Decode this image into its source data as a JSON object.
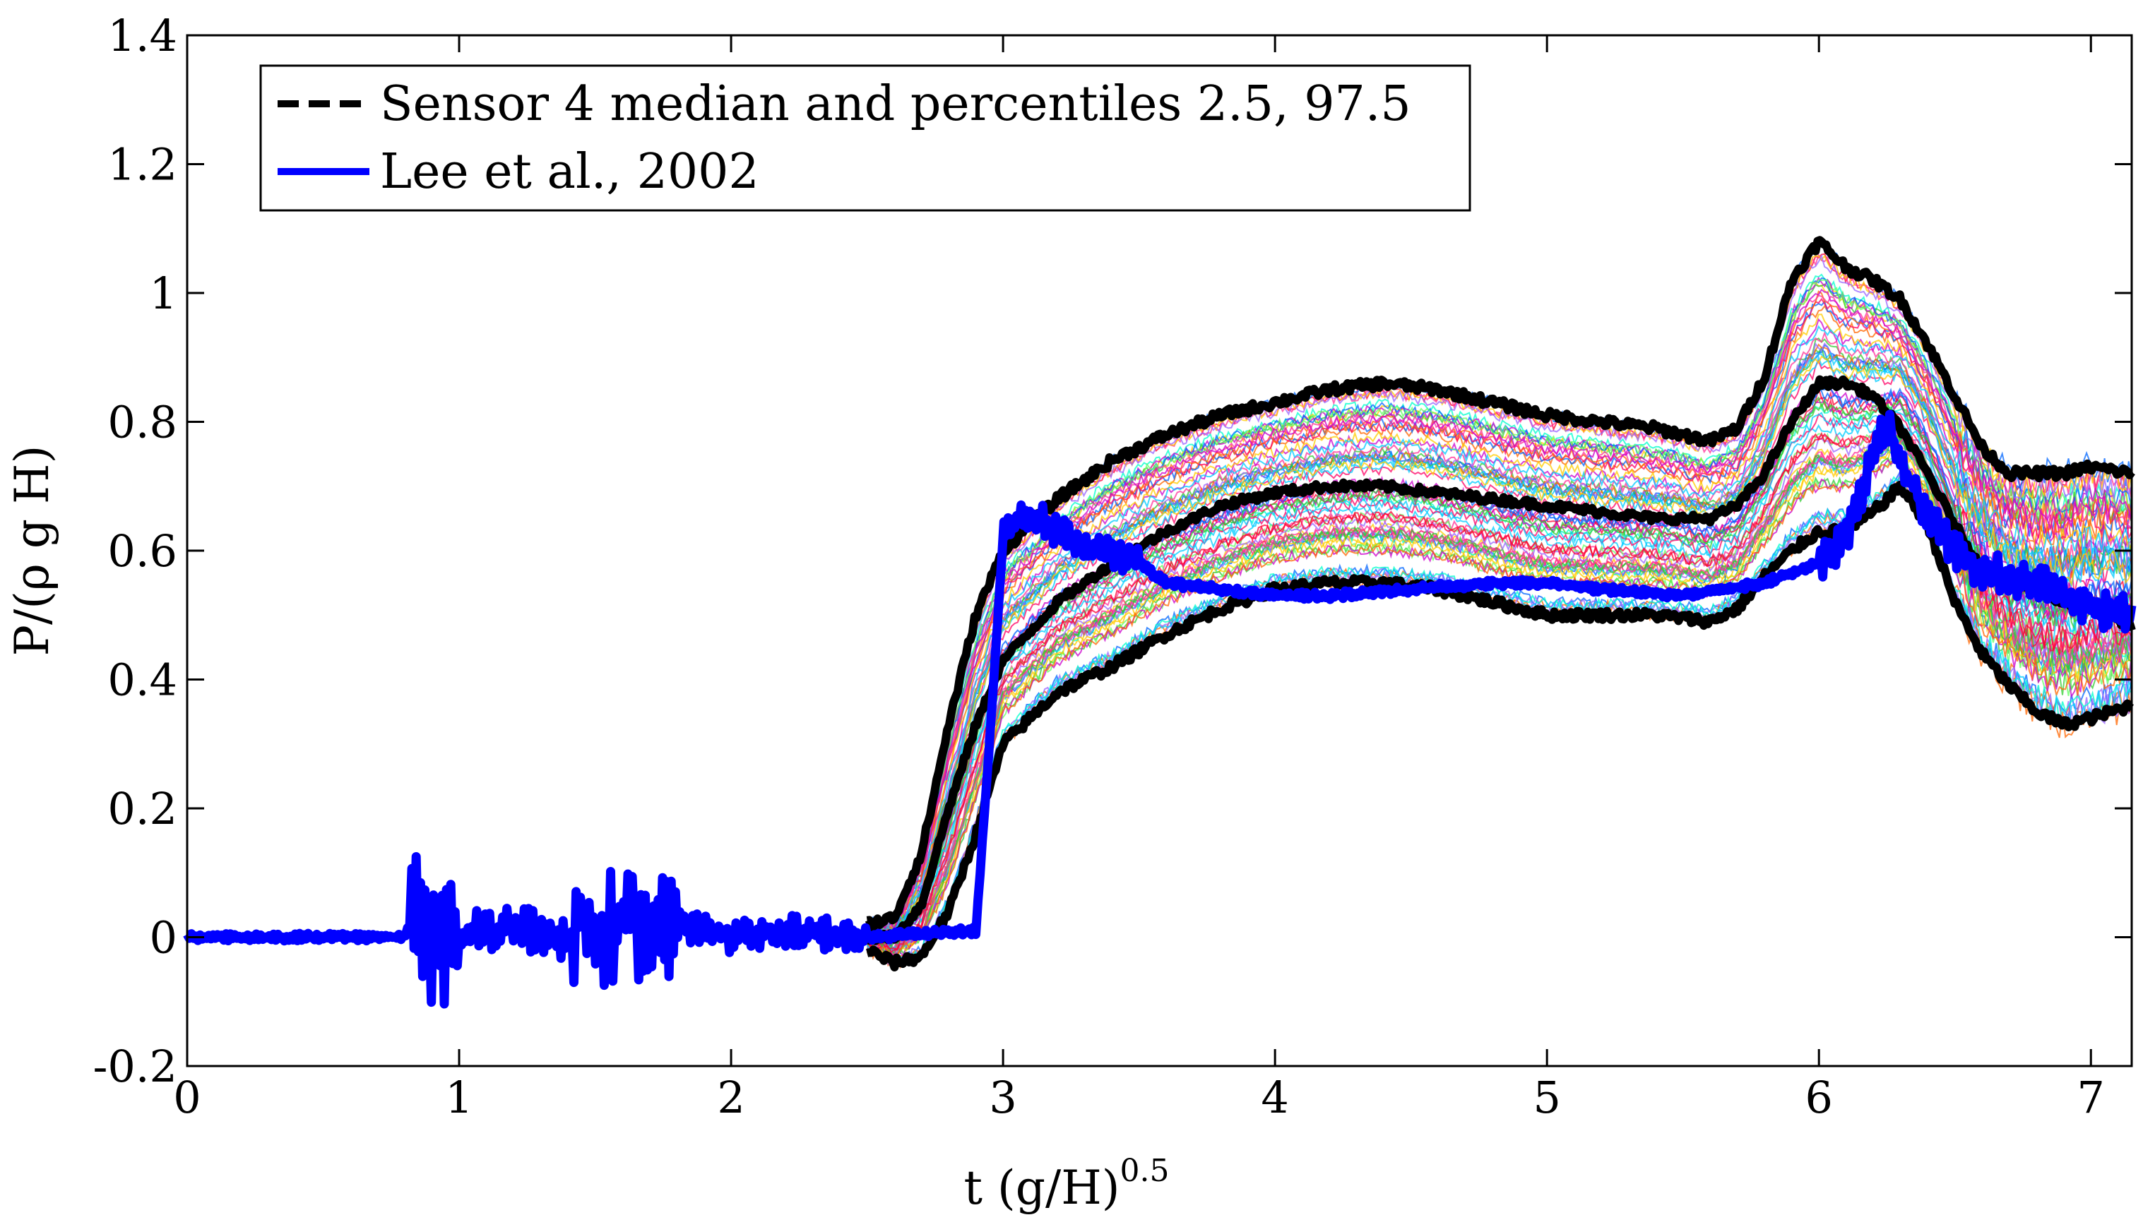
{
  "chart_data": {
    "type": "line",
    "title": "",
    "xlabel": "t (g/H)",
    "xlabel_superscript": "0.5",
    "ylabel": "P/(ρ g H)",
    "xlim": [
      0,
      7.15
    ],
    "ylim": [
      -0.2,
      1.4
    ],
    "xticks": [
      0,
      1,
      2,
      3,
      4,
      5,
      6,
      7
    ],
    "yticks": [
      -0.2,
      0,
      0.2,
      0.4,
      0.6,
      0.8,
      1,
      1.2,
      1.4
    ],
    "xtick_labels": [
      "0",
      "1",
      "2",
      "3",
      "4",
      "5",
      "6",
      "7"
    ],
    "ytick_labels": [
      "-0.2",
      "0",
      "0.2",
      "0.4",
      "0.6",
      "0.8",
      "1",
      "1.2",
      "1.4"
    ],
    "grid": false,
    "legend_position": "top-left",
    "legend": [
      {
        "label": "Sensor 4 median and percentiles 2.5, 97.5",
        "color": "#000000",
        "style": "dashed"
      },
      {
        "label": "Lee et al., 2002",
        "color": "#0000ff",
        "style": "solid"
      }
    ],
    "series": [
      {
        "name": "Sensor 4 median",
        "color": "#000000",
        "x": [
          0,
          2.5,
          2.6,
          2.7,
          2.8,
          2.9,
          3.0,
          3.2,
          3.4,
          3.6,
          3.8,
          4.0,
          4.2,
          4.4,
          4.6,
          4.8,
          5.0,
          5.2,
          5.4,
          5.6,
          5.7,
          5.8,
          5.9,
          6.0,
          6.1,
          6.2,
          6.3,
          6.4,
          6.5,
          6.6,
          6.7,
          6.8,
          6.9,
          7.0,
          7.15
        ],
        "values": [
          0,
          0,
          0,
          0.05,
          0.2,
          0.33,
          0.43,
          0.52,
          0.58,
          0.63,
          0.67,
          0.69,
          0.7,
          0.7,
          0.69,
          0.68,
          0.67,
          0.66,
          0.65,
          0.65,
          0.67,
          0.72,
          0.8,
          0.86,
          0.86,
          0.84,
          0.79,
          0.72,
          0.64,
          0.57,
          0.55,
          0.54,
          0.52,
          0.51,
          0.48
        ]
      },
      {
        "name": "Sensor 4 percentile 97.5",
        "color": "#000000",
        "x": [
          0,
          2.5,
          2.6,
          2.7,
          2.8,
          2.9,
          3.0,
          3.2,
          3.4,
          3.6,
          3.8,
          4.0,
          4.2,
          4.4,
          4.6,
          4.8,
          5.0,
          5.2,
          5.4,
          5.6,
          5.7,
          5.8,
          5.9,
          6.0,
          6.1,
          6.2,
          6.3,
          6.4,
          6.5,
          6.6,
          6.7,
          6.8,
          6.9,
          7.0,
          7.15
        ],
        "values": [
          0.02,
          0.02,
          0.03,
          0.13,
          0.33,
          0.5,
          0.6,
          0.68,
          0.74,
          0.78,
          0.81,
          0.83,
          0.85,
          0.86,
          0.85,
          0.83,
          0.81,
          0.8,
          0.79,
          0.77,
          0.79,
          0.87,
          1.02,
          1.08,
          1.04,
          1.02,
          0.99,
          0.92,
          0.84,
          0.76,
          0.72,
          0.72,
          0.72,
          0.73,
          0.72
        ]
      },
      {
        "name": "Sensor 4 percentile 2.5",
        "color": "#000000",
        "x": [
          0,
          2.5,
          2.6,
          2.7,
          2.8,
          2.9,
          3.0,
          3.2,
          3.4,
          3.6,
          3.8,
          4.0,
          4.2,
          4.4,
          4.6,
          4.8,
          5.0,
          5.2,
          5.4,
          5.6,
          5.7,
          5.8,
          5.9,
          6.0,
          6.1,
          6.2,
          6.3,
          6.4,
          6.5,
          6.6,
          6.7,
          6.8,
          6.9,
          7.0,
          7.15
        ],
        "values": [
          -0.02,
          -0.02,
          -0.04,
          -0.03,
          0.04,
          0.16,
          0.3,
          0.38,
          0.42,
          0.47,
          0.51,
          0.54,
          0.55,
          0.55,
          0.54,
          0.52,
          0.5,
          0.5,
          0.5,
          0.49,
          0.51,
          0.56,
          0.6,
          0.63,
          0.63,
          0.66,
          0.7,
          0.64,
          0.52,
          0.44,
          0.39,
          0.35,
          0.33,
          0.34,
          0.36
        ]
      },
      {
        "name": "Lee et al., 2002",
        "color": "#0000ff",
        "x": [
          0,
          0.8,
          0.85,
          0.9,
          0.95,
          1.0,
          1.2,
          1.4,
          1.45,
          1.5,
          1.6,
          1.7,
          1.8,
          2.0,
          2.2,
          2.5,
          2.9,
          2.95,
          3.0,
          3.05,
          3.1,
          3.2,
          3.3,
          3.4,
          3.5,
          3.6,
          3.8,
          4.0,
          4.2,
          4.5,
          4.8,
          5.0,
          5.2,
          5.5,
          5.8,
          6.0,
          6.1,
          6.15,
          6.2,
          6.25,
          6.3,
          6.4,
          6.5,
          6.6,
          6.8,
          7.0,
          7.15
        ],
        "values": [
          0,
          0,
          0.05,
          0.0,
          -0.03,
          0.0,
          0.02,
          -0.01,
          0.05,
          0.0,
          0.03,
          0.0,
          0.02,
          0.0,
          0.01,
          0.0,
          0.01,
          0.3,
          0.62,
          0.64,
          0.66,
          0.63,
          0.61,
          0.6,
          0.58,
          0.55,
          0.54,
          0.53,
          0.53,
          0.54,
          0.55,
          0.55,
          0.54,
          0.53,
          0.55,
          0.58,
          0.62,
          0.68,
          0.75,
          0.8,
          0.74,
          0.65,
          0.6,
          0.57,
          0.55,
          0.51,
          0.5
        ]
      }
    ]
  }
}
